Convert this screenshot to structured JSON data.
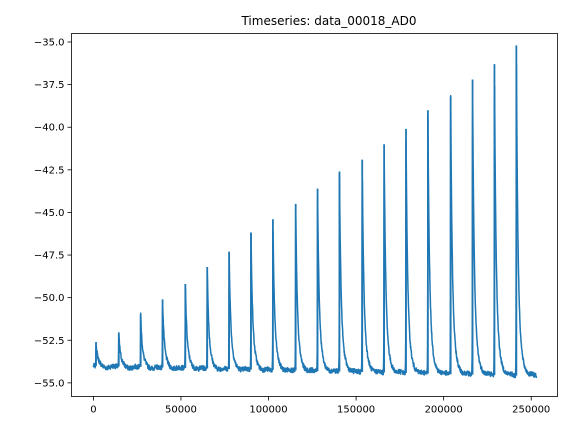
{
  "chart_data": {
    "type": "line",
    "title": "Timeseries: data_00018_AD0",
    "xlabel": "",
    "ylabel": "",
    "xlim": [
      -12500,
      265000
    ],
    "ylim": [
      -55.8,
      -34.5
    ],
    "x_ticks": [
      0,
      50000,
      100000,
      150000,
      200000,
      250000
    ],
    "x_tick_labels": [
      "0",
      "50000",
      "100000",
      "150000",
      "200000",
      "250000"
    ],
    "y_ticks": [
      -55.0,
      -52.5,
      -50.0,
      -47.5,
      -45.0,
      -42.5,
      -40.0,
      -37.5,
      -35.0
    ],
    "y_tick_labels": [
      "−55.0",
      "−52.5",
      "−50.0",
      "−47.5",
      "−45.0",
      "−42.5",
      "−40.0",
      "−37.5",
      "−35.0"
    ],
    "grid": false,
    "line_color": "#1f77b4",
    "series": [
      {
        "x_start": 0,
        "x_end": 253000,
        "baseline_start": -54.0,
        "baseline_end": -54.6,
        "peaks": [
          {
            "x": 1500,
            "y": -52.6
          },
          {
            "x": 14500,
            "y": -52.1
          },
          {
            "x": 27000,
            "y": -51.0
          },
          {
            "x": 39500,
            "y": -50.1
          },
          {
            "x": 52500,
            "y": -49.2
          },
          {
            "x": 65000,
            "y": -48.2
          },
          {
            "x": 77500,
            "y": -47.3
          },
          {
            "x": 90000,
            "y": -46.2
          },
          {
            "x": 102500,
            "y": -45.4
          },
          {
            "x": 115500,
            "y": -44.5
          },
          {
            "x": 128000,
            "y": -43.6
          },
          {
            "x": 140500,
            "y": -42.6
          },
          {
            "x": 153500,
            "y": -41.9
          },
          {
            "x": 166000,
            "y": -41.0
          },
          {
            "x": 178500,
            "y": -40.1
          },
          {
            "x": 191000,
            "y": -39.0
          },
          {
            "x": 204000,
            "y": -38.2
          },
          {
            "x": 216500,
            "y": -37.2
          },
          {
            "x": 229000,
            "y": -36.3
          },
          {
            "x": 241500,
            "y": -35.2
          }
        ]
      }
    ]
  }
}
